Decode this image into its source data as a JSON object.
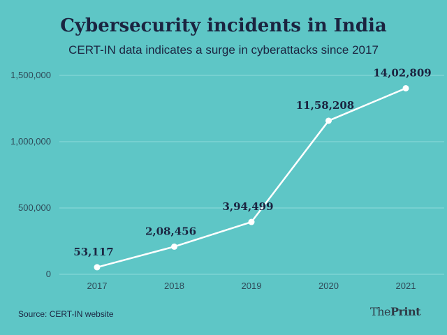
{
  "chart_data": {
    "type": "line",
    "title": "Cybersecurity incidents in India",
    "subtitle": "CERT-IN data indicates a surge in cyberattacks since 2017",
    "categories": [
      "2017",
      "2018",
      "2019",
      "2020",
      "2021"
    ],
    "values": [
      53117,
      208456,
      394499,
      1158208,
      1402809
    ],
    "data_labels": [
      "53,117",
      "2,08,456",
      "3,94,499",
      "11,58,208",
      "14,02,809"
    ],
    "y_ticks": [
      0,
      500000,
      1000000,
      1500000
    ],
    "y_tick_labels": [
      "0",
      "500,000",
      "1,000,000",
      "1,500,000"
    ],
    "ylim": [
      0,
      1500000
    ],
    "grid": true,
    "xlabel": "",
    "ylabel": "",
    "colors": {
      "background": "#5ec6c6",
      "line": "#ffffff",
      "grid": "#8fd9d9",
      "text": "#1b2440"
    }
  },
  "footer": {
    "source": "Source: CERT-IN website",
    "logo_prefix": "The",
    "logo_bold": "Print"
  }
}
